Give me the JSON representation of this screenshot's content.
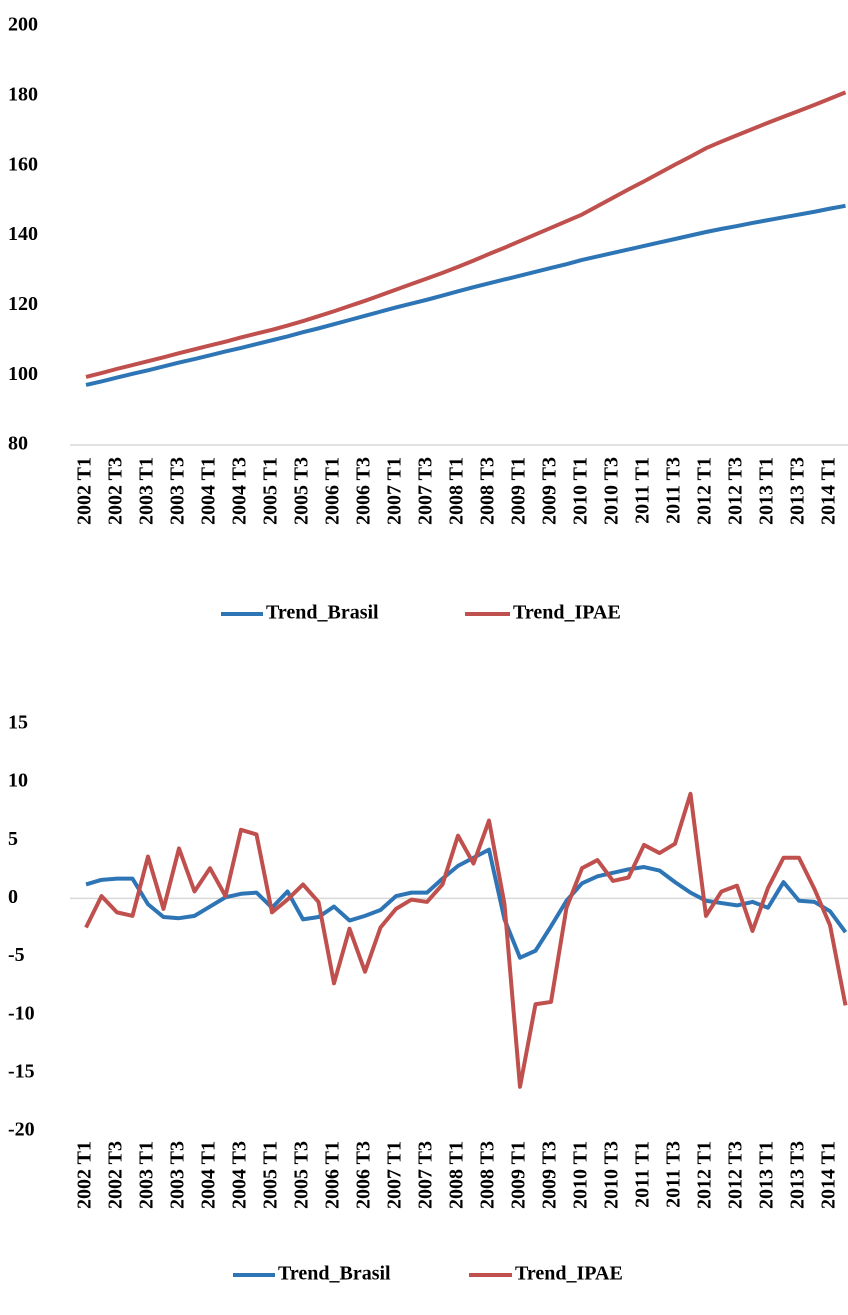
{
  "chart_data": [
    {
      "type": "line",
      "categories": [
        "2002 T1",
        null,
        "2002 T3",
        null,
        "2003 T1",
        null,
        "2003 T3",
        null,
        "2004 T1",
        null,
        "2004 T3",
        null,
        "2005 T1",
        null,
        "2005 T3",
        null,
        "2006 T1",
        null,
        "2006 T3",
        null,
        "2007 T1",
        null,
        "2007 T3",
        null,
        "2008 T1",
        null,
        "2008 T3",
        null,
        "2009 T1",
        null,
        "2009 T3",
        null,
        "2010 T1",
        null,
        "2010 T3",
        null,
        "2011 T1",
        null,
        "2011 T3",
        null,
        "2012 T1",
        null,
        "2012 T3",
        null,
        "2013 T1",
        null,
        "2013 T3",
        null,
        "2014 T1",
        null
      ],
      "series": [
        {
          "name": "Trend_Brasil",
          "color": "#2e75b6",
          "values": [
            97.2,
            98.2,
            99.3,
            100.4,
            101.4,
            102.5,
            103.6,
            104.6,
            105.7,
            106.8,
            107.8,
            108.9,
            110.0,
            111.1,
            112.3,
            113.4,
            114.6,
            115.8,
            117.0,
            118.2,
            119.4,
            120.5,
            121.6,
            122.8,
            124.0,
            125.2,
            126.3,
            127.4,
            128.5,
            129.6,
            130.7,
            131.8,
            133.0,
            134.0,
            135.0,
            136.0,
            137.0,
            138.0,
            139.0,
            140.0,
            141.0,
            141.9,
            142.7,
            143.6,
            144.4,
            145.2,
            146.0,
            146.8,
            147.7,
            148.5
          ]
        },
        {
          "name": "Trend_IPAE",
          "color": "#c0504d",
          "values": [
            99.5,
            100.6,
            101.8,
            102.9,
            104.0,
            105.1,
            106.3,
            107.4,
            108.5,
            109.6,
            110.8,
            111.9,
            113.0,
            114.2,
            115.5,
            116.9,
            118.3,
            119.8,
            121.3,
            122.9,
            124.5,
            126.1,
            127.7,
            129.3,
            131.0,
            132.8,
            134.7,
            136.5,
            138.4,
            140.3,
            142.2,
            144.1,
            146.0,
            148.4,
            150.8,
            153.2,
            155.5,
            157.9,
            160.3,
            162.6,
            165.0,
            166.9,
            168.7,
            170.5,
            172.3,
            174.0,
            175.7,
            177.4,
            179.2,
            181.0
          ]
        }
      ],
      "ylim": [
        80,
        200
      ],
      "yticks": [
        80,
        100,
        120,
        140,
        160,
        180,
        200
      ],
      "grid": false,
      "legend": "bottom"
    },
    {
      "type": "line",
      "categories": [
        "2002 T1",
        null,
        "2002 T3",
        null,
        "2003 T1",
        null,
        "2003 T3",
        null,
        "2004 T1",
        null,
        "2004 T3",
        null,
        "2005 T1",
        null,
        "2005 T3",
        null,
        "2006 T1",
        null,
        "2006 T3",
        null,
        "2007 T1",
        null,
        "2007 T3",
        null,
        "2008 T1",
        null,
        "2008 T3",
        null,
        "2009 T1",
        null,
        "2009 T3",
        null,
        "2010 T1",
        null,
        "2010 T3",
        null,
        "2011 T1",
        null,
        "2011 T3",
        null,
        "2012 T1",
        null,
        "2012 T3",
        null,
        "2013 T1",
        null,
        "2013 T3",
        null,
        "2014 T1",
        null
      ],
      "series": [
        {
          "name": "Trend_Brasil",
          "color": "#2e75b6",
          "values": [
            1.2,
            1.6,
            1.7,
            1.7,
            -0.5,
            -1.6,
            -1.7,
            -1.5,
            -0.7,
            0.1,
            0.4,
            0.5,
            -0.8,
            0.6,
            -1.8,
            -1.6,
            -0.7,
            -1.9,
            -1.5,
            -1.0,
            0.2,
            0.5,
            0.5,
            1.7,
            2.8,
            3.5,
            4.2,
            -1.8,
            -5.1,
            -4.5,
            -2.4,
            -0.2,
            1.3,
            1.9,
            2.2,
            2.5,
            2.7,
            2.4,
            1.4,
            0.5,
            -0.2,
            -0.4,
            -0.6,
            -0.3,
            -0.8,
            1.4,
            -0.2,
            -0.3,
            -1.1,
            -2.9
          ]
        },
        {
          "name": "Trend_IPAE",
          "color": "#c0504d",
          "values": [
            -2.5,
            0.2,
            -1.2,
            -1.5,
            3.6,
            -0.9,
            4.3,
            0.6,
            2.6,
            0.2,
            5.9,
            5.5,
            -1.2,
            -0.1,
            1.2,
            -0.3,
            -7.3,
            -2.6,
            -6.3,
            -2.5,
            -0.9,
            -0.1,
            -0.3,
            1.2,
            5.4,
            3.0,
            6.7,
            -0.5,
            -16.2,
            -9.1,
            -8.9,
            -0.8,
            2.6,
            3.3,
            1.5,
            1.8,
            4.6,
            3.9,
            4.7,
            9.0,
            -1.5,
            0.6,
            1.1,
            -2.8,
            0.9,
            3.5,
            3.5,
            0.8,
            -2.3,
            -9.2
          ]
        }
      ],
      "ylim": [
        -20,
        15
      ],
      "yticks": [
        -20,
        -15,
        -10,
        -5,
        0,
        5,
        10,
        15
      ],
      "grid": false,
      "legend": "bottom"
    }
  ]
}
